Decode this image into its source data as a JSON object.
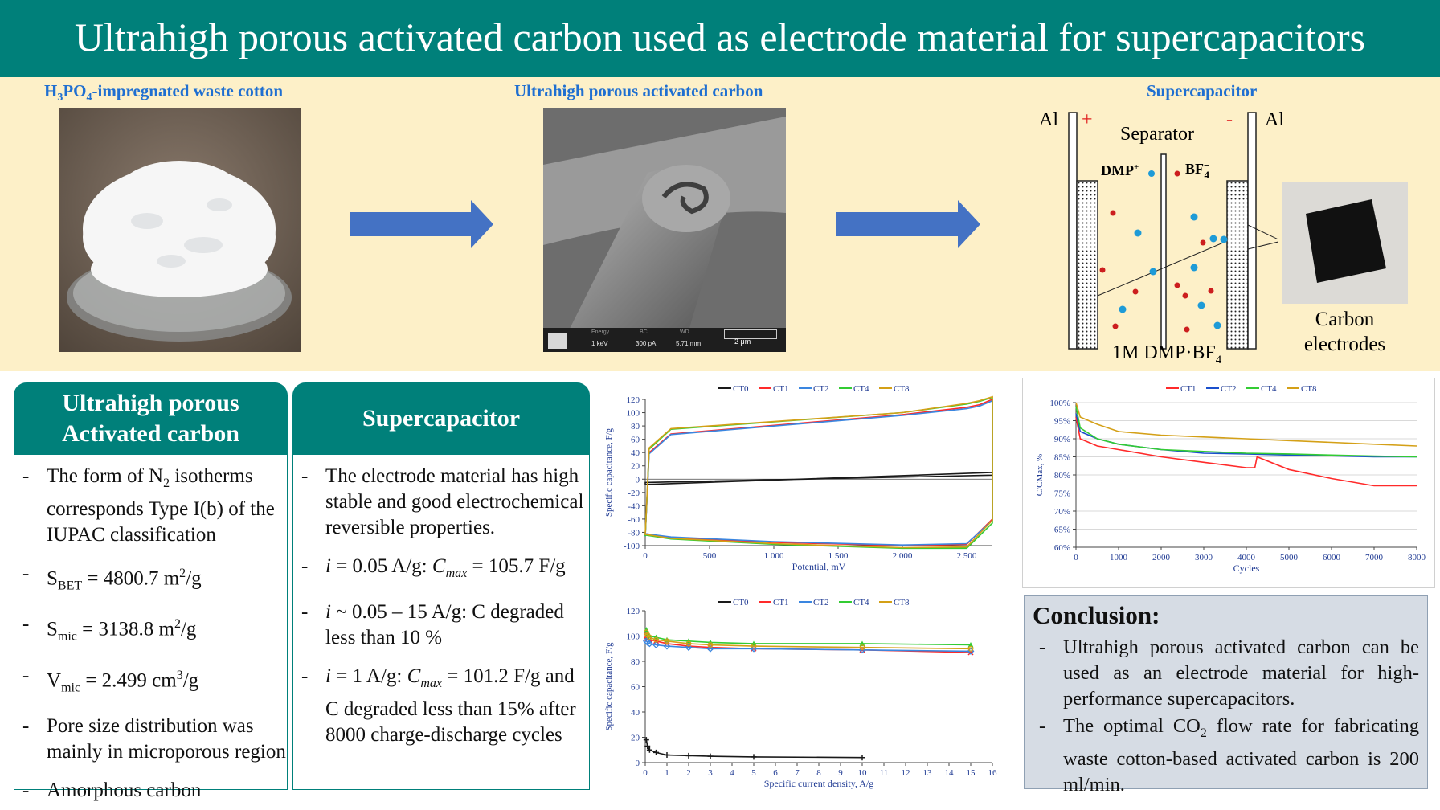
{
  "header": {
    "title": "Ultrahigh porous activated carbon used as electrode material for supercapacitors"
  },
  "top_band": {
    "cotton": {
      "caption_prefix": "H",
      "caption_sub1": "3",
      "caption_mid": "PO",
      "caption_sub2": "4",
      "caption_suffix": "-impregnated waste cotton"
    },
    "sem": {
      "caption": "Ultrahigh porous activated carbon",
      "infobar": {
        "labels": [
          "Energy",
          "BC",
          "WD"
        ],
        "values": [
          "1 keV",
          "300 pA",
          "5.71 mm"
        ],
        "scale": "2 μm"
      }
    },
    "supercap": {
      "caption": "Supercapacitor",
      "al_left": "Al",
      "al_right": "Al",
      "plus": "+",
      "minus": "-",
      "separator": "Separator",
      "cation": "DMP",
      "cation_charge": "+",
      "anion": "BF",
      "anion_sub": "4",
      "anion_charge": "−",
      "electrolyte_prefix": "1M DMP·BF",
      "electrolyte_sub": "4",
      "photo_label_line1": "Carbon",
      "photo_label_line2": "electrodes"
    }
  },
  "panel_carbon": {
    "title_line1": "Ultrahigh porous",
    "title_line2": "Activated carbon",
    "items": {
      "n2_a": "The form of N",
      "n2_sub": "2",
      "n2_b": " isotherms corresponds Type I(b) of the IUPAC classification",
      "sbet_s": "S",
      "sbet_sub": "BET",
      "sbet_val": " = 4800.7 m",
      "sbet_sup": "2",
      "sbet_unit": "/g",
      "smic_s": "S",
      "smic_sub": "mic",
      "smic_val": " = 3138.8 m",
      "smic_sup": "2",
      "smic_unit": "/g",
      "vmic_s": "V",
      "vmic_sub": "mic",
      "vmic_val": " = 2.499 cm",
      "vmic_sup": "3",
      "vmic_unit": "/g",
      "pore": "Pore size distribution was mainly in microporous region",
      "amorph": "Amorphous carbon"
    }
  },
  "panel_super": {
    "title": "Supercapacitor",
    "items": {
      "stable": "The electrode material has high stable and good electrochemical reversible properties.",
      "i1_a": "i",
      "i1_b": " = 0.05 A/g: ",
      "i1_c": "C",
      "i1_sub": "max",
      "i1_d": " = 105.7 F/g",
      "i2_a": "i",
      "i2_b": " ~ 0.05 – 15 A/g: C degraded less than 10 %",
      "i3_a": "i",
      "i3_b": " = 1 A/g: ",
      "i3_c": "C",
      "i3_sub": "max",
      "i3_d": " = 101.2 F/g and C degraded less than 15% after 8000 charge-discharge cycles"
    }
  },
  "conclusion": {
    "title": "Conclusion:",
    "item1": "Ultrahigh porous activated carbon can be used as an electrode material for high-performance supercapacitors.",
    "item2_a": "The optimal CO",
    "item2_sub": "2",
    "item2_b": " flow rate for fabricating waste cotton-based activated carbon is 200 ml/min."
  },
  "colors": {
    "teal": "#00807a",
    "band": "#fdf0c8",
    "arrow": "#4472c4",
    "caption": "#1f6fd1"
  },
  "chart_data": [
    {
      "type": "line",
      "xlabel": "Potential, mV",
      "ylabel": "Specific capacitance, F/g",
      "xlim": [
        0,
        2700
      ],
      "ylim": [
        -100,
        120
      ],
      "xticks": [
        "0",
        "500",
        "1 000",
        "1 500",
        "2 000",
        "2 500"
      ],
      "yticks": [
        "-100",
        "-80",
        "-60",
        "-40",
        "-20",
        "0",
        "20",
        "40",
        "60",
        "80",
        "100",
        "120"
      ],
      "legend_position": "top",
      "series": [
        {
          "name": "CT0",
          "color": "#1a1a1a",
          "x": [
            0,
            2700,
            2700,
            0,
            0
          ],
          "y": [
            -8,
            10,
            6,
            -5,
            -8
          ]
        },
        {
          "name": "CT1",
          "color": "#ff2a2a",
          "x": [
            0,
            30,
            200,
            2000,
            2500,
            2600,
            2700,
            2700,
            2500,
            2000,
            1000,
            200,
            0,
            0
          ],
          "y": [
            -85,
            40,
            68,
            97,
            108,
            112,
            120,
            -60,
            -98,
            -100,
            -95,
            -88,
            -82,
            -85
          ]
        },
        {
          "name": "CT2",
          "color": "#3a86e0",
          "x": [
            0,
            30,
            200,
            2000,
            2500,
            2600,
            2700,
            2700,
            2500,
            2000,
            1000,
            200,
            0,
            0
          ],
          "y": [
            -86,
            38,
            67,
            96,
            106,
            110,
            118,
            -62,
            -97,
            -99,
            -94,
            -87,
            -82,
            -86
          ]
        },
        {
          "name": "CT4",
          "color": "#33cc33",
          "x": [
            0,
            30,
            200,
            2000,
            2500,
            2600,
            2700,
            2700,
            2500,
            2000,
            1000,
            200,
            0,
            0
          ],
          "y": [
            -86,
            45,
            75,
            100,
            113,
            117,
            123,
            -66,
            -104,
            -104,
            -98,
            -90,
            -84,
            -86
          ]
        },
        {
          "name": "CT8",
          "color": "#d4a017",
          "x": [
            0,
            30,
            200,
            2000,
            2500,
            2600,
            2700,
            2700,
            2500,
            2000,
            1000,
            200,
            0,
            0
          ],
          "y": [
            -84,
            47,
            76,
            100,
            114,
            118,
            124,
            -62,
            -102,
            -103,
            -97,
            -89,
            -83,
            -84
          ]
        }
      ]
    },
    {
      "type": "line",
      "xlabel": "Specific current density, A/g",
      "ylabel": "Specific capacitance, F/g",
      "xlim": [
        0,
        16
      ],
      "ylim": [
        0,
        120
      ],
      "xticks": [
        "0",
        "1",
        "2",
        "3",
        "4",
        "5",
        "6",
        "7",
        "8",
        "9",
        "10",
        "11",
        "12",
        "13",
        "14",
        "15",
        "16"
      ],
      "yticks": [
        "0",
        "20",
        "40",
        "60",
        "80",
        "100",
        "120"
      ],
      "legend_position": "top",
      "series": [
        {
          "name": "CT0",
          "color": "#1a1a1a",
          "x": [
            0.05,
            0.1,
            0.2,
            0.5,
            1,
            2,
            3,
            5,
            10
          ],
          "y": [
            18,
            13,
            10,
            8,
            6,
            5.5,
            5,
            4.5,
            4
          ]
        },
        {
          "name": "CT1",
          "color": "#ff2a2a",
          "x": [
            0.05,
            0.1,
            0.2,
            0.5,
            1,
            2,
            3,
            5,
            10,
            15
          ],
          "y": [
            100,
            98,
            97,
            96,
            94,
            92,
            91,
            90,
            89,
            87
          ]
        },
        {
          "name": "CT2",
          "color": "#3a86e0",
          "x": [
            0.05,
            0.1,
            0.2,
            0.5,
            1,
            2,
            3,
            5,
            10,
            15
          ],
          "y": [
            96,
            95,
            94,
            93,
            92,
            91,
            90,
            90,
            89,
            88
          ]
        },
        {
          "name": "CT4",
          "color": "#33cc33",
          "x": [
            0.05,
            0.1,
            0.2,
            0.5,
            1,
            2,
            3,
            5,
            10,
            15
          ],
          "y": [
            105,
            102,
            100,
            99,
            97,
            96,
            95,
            94,
            94,
            93
          ]
        },
        {
          "name": "CT8",
          "color": "#d4a017",
          "x": [
            0.05,
            0.1,
            0.2,
            0.5,
            1,
            2,
            3,
            5,
            10,
            15
          ],
          "y": [
            103,
            101,
            99,
            97,
            96,
            94,
            93,
            92,
            91,
            90
          ]
        }
      ]
    },
    {
      "type": "line",
      "xlabel": "Cycles",
      "ylabel": "C/CMax, %",
      "xlim": [
        0,
        8000
      ],
      "ylim": [
        60,
        100
      ],
      "xticks": [
        "0",
        "1000",
        "2000",
        "3000",
        "4000",
        "5000",
        "6000",
        "7000",
        "8000"
      ],
      "yticks": [
        "60%",
        "65%",
        "70%",
        "75%",
        "80%",
        "85%",
        "90%",
        "95%",
        "100%"
      ],
      "legend_position": "top",
      "series": [
        {
          "name": "CT1",
          "color": "#ff2a2a",
          "x": [
            0,
            100,
            500,
            1000,
            2000,
            3000,
            4000,
            4200,
            4250,
            5000,
            6000,
            7000,
            8000
          ],
          "y": [
            96,
            90,
            88,
            87,
            85,
            83.5,
            82,
            82,
            85,
            81.5,
            79,
            77,
            77
          ]
        },
        {
          "name": "CT2",
          "color": "#1a4fcc",
          "x": [
            0,
            100,
            500,
            1000,
            2000,
            3000,
            4000,
            5000,
            6000,
            7000,
            8000
          ],
          "y": [
            97,
            92,
            90,
            88.5,
            87,
            86,
            85.8,
            85.5,
            85.3,
            85,
            85
          ]
        },
        {
          "name": "CT4",
          "color": "#33cc33",
          "x": [
            0,
            100,
            500,
            1000,
            2000,
            3000,
            4000,
            5000,
            6000,
            7000,
            8000
          ],
          "y": [
            99,
            93,
            90,
            88.5,
            87,
            86.5,
            86,
            85.8,
            85.5,
            85.2,
            85
          ]
        },
        {
          "name": "CT8",
          "color": "#d4a017",
          "x": [
            0,
            100,
            500,
            1000,
            2000,
            3000,
            4000,
            5000,
            6000,
            7000,
            8000
          ],
          "y": [
            100,
            96,
            94,
            92,
            91,
            90.5,
            90,
            89.5,
            89,
            88.5,
            88
          ]
        }
      ]
    }
  ]
}
